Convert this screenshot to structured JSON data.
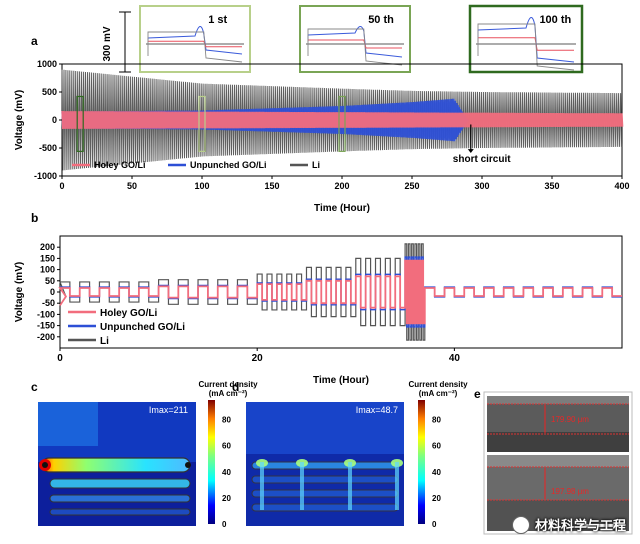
{
  "chart_data": [
    {
      "panel": "a",
      "type": "line",
      "xlabel": "Time (Hour)",
      "ylabel": "Voltage (mV)",
      "xlim": [
        0,
        400
      ],
      "ylim": [
        -1000,
        1000
      ],
      "xticks": [
        0,
        50,
        100,
        150,
        200,
        250,
        300,
        350,
        400
      ],
      "yticks": [
        -1000,
        -500,
        0,
        500,
        1000
      ],
      "legend_position": "bottom-left",
      "series": [
        {
          "name": "Holey GO/Li",
          "color": "#f26d7d",
          "x": [
            0,
            100,
            200,
            300,
            400
          ],
          "amplitude": [
            160,
            150,
            140,
            130,
            120
          ]
        },
        {
          "name": "Unpunched GO/Li",
          "color": "#2d4fd6",
          "x": [
            0,
            100,
            200,
            250,
            280,
            290
          ],
          "amplitude": [
            150,
            170,
            250,
            320,
            380,
            0
          ]
        },
        {
          "name": "Li",
          "color": "#555555",
          "x": [
            0,
            100,
            200,
            250,
            300,
            400
          ],
          "amplitude": [
            900,
            650,
            560,
            520,
            500,
            480
          ]
        }
      ],
      "annotations": [
        {
          "text": "short circuit",
          "x": 292
        },
        {
          "text": "300 mV"
        }
      ],
      "insets": [
        {
          "label": "1 st",
          "frame_color": "#b8d08a",
          "x_hour": 100
        },
        {
          "label": "50 th",
          "frame_color": "#7aa555",
          "x_hour": 200
        },
        {
          "label": "100 th",
          "frame_color": "#2f6a1f",
          "x_hour": 13
        }
      ]
    },
    {
      "panel": "b",
      "type": "line",
      "xlabel": "Time (Hour)",
      "ylabel": "Voltage (mV)",
      "xlim": [
        0,
        57
      ],
      "ylim": [
        -250,
        250
      ],
      "xticks": [
        0,
        20,
        40
      ],
      "yticks": [
        -200,
        -150,
        -100,
        -50,
        0,
        50,
        100,
        150,
        200
      ],
      "legend_position": "bottom-left",
      "series": [
        {
          "name": "Holey GO/Li",
          "color": "#f26d7d"
        },
        {
          "name": "Unpunched GO/Li",
          "color": "#2d4fd6"
        },
        {
          "name": "Li",
          "color": "#555555"
        }
      ],
      "rate_blocks": [
        {
          "x0": 0,
          "x1": 10,
          "cycles": 5,
          "amp_holey": 18,
          "amp_li": 45
        },
        {
          "x0": 10,
          "x1": 20,
          "cycles": 5,
          "amp_holey": 25,
          "amp_li": 55
        },
        {
          "x0": 20,
          "x1": 25,
          "cycles": 5,
          "amp_holey": 35,
          "amp_li": 80
        },
        {
          "x0": 25,
          "x1": 30,
          "cycles": 5,
          "amp_holey": 50,
          "amp_li": 110
        },
        {
          "x0": 30,
          "x1": 35,
          "cycles": 5,
          "amp_holey": 70,
          "amp_li": 150
        },
        {
          "x0": 35,
          "x1": 37,
          "cycles": 6,
          "amp_holey": 140,
          "amp_li": 215
        },
        {
          "x0": 37,
          "x1": 57,
          "cycles": 10,
          "amp_holey": 18,
          "amp_li": 22
        }
      ]
    },
    {
      "panel": "c",
      "type": "heatmap",
      "annotation": "Imax=211",
      "colorbar_title": "Current density",
      "colorbar_unit": "(mA cm⁻²)",
      "colorbar_ticks": [
        0,
        20,
        40,
        60,
        80
      ]
    },
    {
      "panel": "d",
      "type": "heatmap",
      "annotation": "Imax=48.7",
      "colorbar_title": "Current density",
      "colorbar_unit": "(mA cm⁻²)",
      "colorbar_ticks": [
        0,
        20,
        40,
        60,
        80
      ]
    }
  ],
  "panel_e": {
    "label": "e",
    "top_thickness": "179.90 μm",
    "bottom_thickness": "197.98 μm"
  },
  "watermark": "材料科学与工程"
}
